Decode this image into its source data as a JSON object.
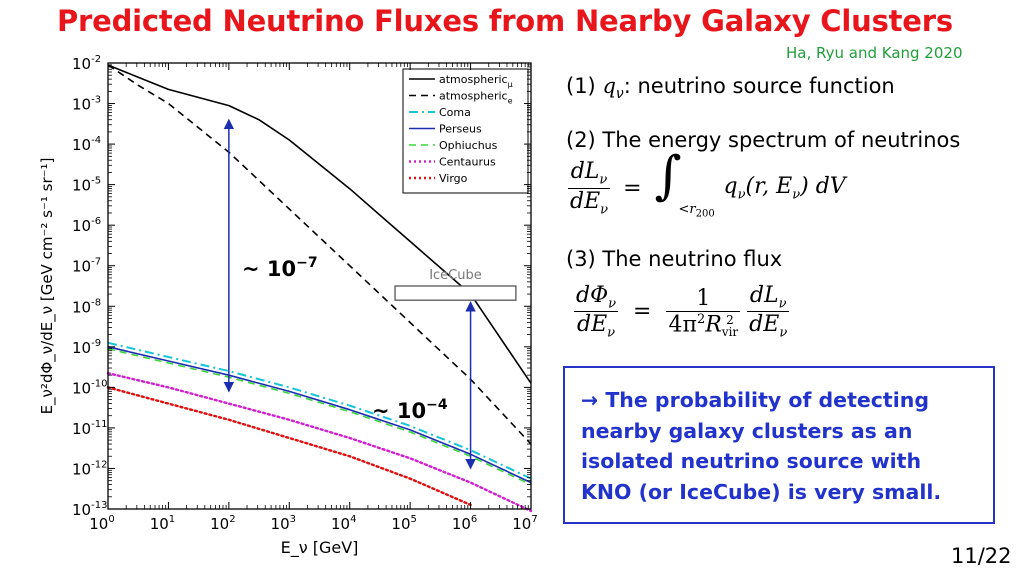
{
  "slide": {
    "title": "Predicted Neutrino Fluxes from Nearby Galaxy Clusters",
    "citation": "Ha, Ryu and Kang 2020",
    "page_number": "11/22"
  },
  "items": {
    "item1_prefix": "(1)",
    "item1_symbol": "q",
    "item1_subscript": "ν",
    "item1_text": ": neutrino source function",
    "item2_text": "(2) The energy spectrum of neutrinos",
    "item3_text": "(3) The neutrino flux"
  },
  "equations": {
    "eq2": {
      "lhs_num": "dL",
      "lhs_sub": "ν",
      "lhs_den": "dE",
      "lhs_den_sub": "ν",
      "equals": "=",
      "integral": "∫",
      "limit": "<r",
      "limit_sub": "200",
      "integrand": "q",
      "integrand_sub": "ν",
      "args": "(r, E",
      "args_sub": "ν",
      "args_end": ") dV"
    },
    "eq3": {
      "lhs_num": "dΦ",
      "lhs_sub": "ν",
      "lhs_den": "dE",
      "lhs_den_sub": "ν",
      "equals": "=",
      "mid_num": "1",
      "mid_den": "4π",
      "mid_den_sup": "2",
      "mid_den_R": "R",
      "mid_den_R_sup": "2",
      "mid_den_R_sub": "vir",
      "rhs_num": "dL",
      "rhs_sub": "ν",
      "rhs_den": "dE",
      "rhs_den_sub": "ν"
    }
  },
  "conclusion": {
    "line1": "→ The probability of detecting",
    "line2": "nearby galaxy clusters as an",
    "line3": "isolated neutrino source with",
    "line4": "KNO (or IceCube) is very small."
  },
  "chart_data": {
    "type": "line",
    "xlabel": "E_ν [GeV]",
    "ylabel": "E_ν²dΦ_ν/dE_ν [GeV cm⁻² s⁻¹ sr⁻¹]",
    "xscale": "log",
    "yscale": "log",
    "xlim_exp": [
      0,
      7
    ],
    "ylim_exp": [
      -13,
      -2
    ],
    "x_tick_exponents": [
      0,
      1,
      2,
      3,
      4,
      5,
      6,
      7
    ],
    "y_tick_exponents": [
      -13,
      -12,
      -11,
      -10,
      -9,
      -8,
      -7,
      -6,
      -5,
      -4,
      -3,
      -2
    ],
    "tick_base": "10",
    "legend_position": "top-right",
    "series": [
      {
        "name": "atmospheric",
        "sub": "μ",
        "color": "#000000",
        "style": "solid",
        "log_x": [
          0,
          0.5,
          1,
          2,
          2.5,
          3,
          4,
          5,
          6,
          7
        ],
        "log_y": [
          -2.05,
          -2.35,
          -2.65,
          -3.05,
          -3.4,
          -3.9,
          -5.1,
          -6.4,
          -7.7,
          -9.9
        ]
      },
      {
        "name": "atmospheric",
        "sub": "e",
        "color": "#000000",
        "style": "dashed",
        "log_x": [
          0,
          0.5,
          1,
          2,
          3,
          4,
          5,
          6,
          7
        ],
        "log_y": [
          -2.05,
          -2.55,
          -3.0,
          -4.2,
          -5.6,
          -7.0,
          -8.4,
          -9.8,
          -11.4
        ]
      },
      {
        "name": "Coma",
        "color": "#14c4d8",
        "style": "dashdot",
        "log_x": [
          0,
          1,
          2,
          3,
          4,
          5,
          6,
          7
        ],
        "log_y": [
          -8.9,
          -9.25,
          -9.6,
          -10.0,
          -10.45,
          -10.95,
          -11.55,
          -12.25
        ]
      },
      {
        "name": "Perseus",
        "color": "#1c2eb0",
        "style": "solid",
        "log_x": [
          0,
          1,
          2,
          3,
          4,
          5,
          6,
          7
        ],
        "log_y": [
          -9.0,
          -9.35,
          -9.7,
          -10.1,
          -10.55,
          -11.05,
          -11.65,
          -12.35
        ]
      },
      {
        "name": "Ophiuchus",
        "color": "#38d838",
        "style": "dashed",
        "log_x": [
          0,
          1,
          2,
          3,
          4,
          5,
          6,
          7
        ],
        "log_y": [
          -9.05,
          -9.4,
          -9.75,
          -10.15,
          -10.6,
          -11.1,
          -11.7,
          -12.4
        ]
      },
      {
        "name": "Centaurus",
        "color": "#d020d0",
        "style": "dotted",
        "log_x": [
          0,
          1,
          2,
          3,
          4,
          5,
          6,
          7
        ],
        "log_y": [
          -9.65,
          -10.0,
          -10.4,
          -10.8,
          -11.25,
          -11.75,
          -12.35,
          -13.05
        ]
      },
      {
        "name": "Virgo",
        "color": "#e01010",
        "style": "dotted",
        "log_x": [
          0,
          1,
          2,
          3,
          4,
          5,
          6
        ],
        "log_y": [
          -10.0,
          -10.4,
          -10.8,
          -11.25,
          -11.7,
          -12.25,
          -12.9
        ]
      }
    ],
    "icecube_box": {
      "label": "IceCube",
      "log_x": [
        4.75,
        6.75
      ],
      "log_y": [
        -7.85,
        -7.5
      ]
    },
    "annotations": [
      {
        "label": "~ 10",
        "exponent": "−7",
        "arrow_log_x": 2,
        "arrow_log_y": [
          -3.4,
          -10.1
        ]
      },
      {
        "label": "~ 10",
        "exponent": "−4",
        "arrow_log_x": 6,
        "arrow_log_y": [
          -7.9,
          -12.0
        ]
      }
    ]
  }
}
